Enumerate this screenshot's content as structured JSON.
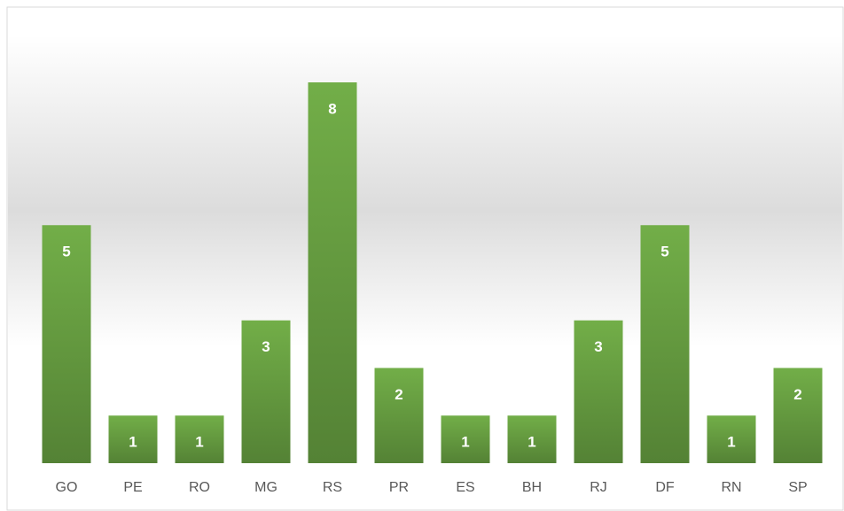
{
  "chart_data": {
    "type": "bar",
    "categories": [
      "GO",
      "PE",
      "RO",
      "MG",
      "RS",
      "PR",
      "ES",
      "BH",
      "RJ",
      "DF",
      "RN",
      "SP"
    ],
    "values": [
      5,
      1,
      1,
      3,
      8,
      2,
      1,
      1,
      3,
      5,
      1,
      2
    ],
    "color": "#70ad47",
    "ylim": [
      0,
      8
    ]
  }
}
